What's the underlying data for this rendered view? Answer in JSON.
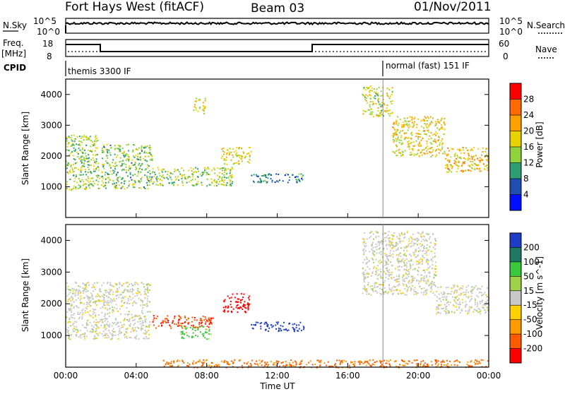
{
  "header": {
    "title": "Fort Hays West (fitACF)",
    "beam": "Beam 03",
    "date": "01/Nov/2011"
  },
  "left_labels": {
    "nsky": "N.Sky",
    "freq": "Freq.",
    "mhz": "[MHz]",
    "cpid": "CPID"
  },
  "right_labels": {
    "nsearch": "N.Search",
    "nave": "Nave"
  },
  "noise_panel": {
    "left_ticks": [
      "10^5",
      "10^0"
    ],
    "right_ticks": [
      "10^5",
      "10^0"
    ]
  },
  "freq_panel": {
    "left_ticks": [
      "18",
      "8"
    ],
    "right_ticks": [
      "60",
      "0"
    ]
  },
  "cpid_panel": {
    "mode1": "themis 3300 IF",
    "mode2": "normal (fast) 151 IF"
  },
  "power_colorbar": {
    "label": "Power [dB]",
    "ticks": [
      "28",
      "24",
      "20",
      "16",
      "12",
      "8",
      "4"
    ],
    "colors": [
      "#ff0000",
      "#ff6a00",
      "#ff9f00",
      "#e8d200",
      "#8fd23c",
      "#2f9e72",
      "#1e4fb0",
      "#0010ff"
    ]
  },
  "velocity_colorbar": {
    "label": "Velocity [m s^-1]",
    "ticks": [
      "200",
      "100",
      "50",
      "15",
      "-15",
      "-50",
      "-100",
      "-200"
    ],
    "colors": [
      "#1e3cc8",
      "#1e7a64",
      "#3cc83c",
      "#9ed24a",
      "#c8c8c8",
      "#ffd200",
      "#ff9a00",
      "#ff5a00",
      "#ff0000"
    ]
  },
  "chart_data": [
    {
      "type": "heatmap",
      "name": "power",
      "ylabel": "Slant Range [km]",
      "ylim": [
        0,
        4500
      ],
      "yticks": [
        "1000",
        "2000",
        "3000",
        "4000"
      ],
      "xlim": [
        0,
        24
      ],
      "patches": [
        {
          "t0": 0.0,
          "t1": 1.9,
          "r0": 900,
          "r1": 2700,
          "intensity": 14
        },
        {
          "t0": 2.0,
          "t1": 4.9,
          "r0": 950,
          "r1": 2400,
          "intensity": 13
        },
        {
          "t0": 4.9,
          "t1": 9.5,
          "r0": 1050,
          "r1": 1650,
          "intensity": 14
        },
        {
          "t0": 7.2,
          "t1": 7.9,
          "r0": 3400,
          "r1": 3900,
          "intensity": 16
        },
        {
          "t0": 8.8,
          "t1": 10.5,
          "r0": 1750,
          "r1": 2300,
          "intensity": 17
        },
        {
          "t0": 10.5,
          "t1": 13.5,
          "r0": 1150,
          "r1": 1450,
          "intensity": 9
        },
        {
          "t0": 16.8,
          "t1": 18.5,
          "r0": 3300,
          "r1": 4300,
          "intensity": 16
        },
        {
          "t0": 18.5,
          "t1": 21.5,
          "r0": 2000,
          "r1": 3300,
          "intensity": 18
        },
        {
          "t0": 21.5,
          "t1": 24.0,
          "r0": 1500,
          "r1": 2300,
          "intensity": 19
        }
      ]
    },
    {
      "type": "heatmap",
      "name": "velocity",
      "ylabel": "Slant Range [km]",
      "xlabel": "Time UT",
      "ylim": [
        0,
        4500
      ],
      "yticks": [
        "1000",
        "2000",
        "3000",
        "4000"
      ],
      "xlim": [
        0,
        24
      ],
      "xticks": [
        "00:00",
        "04:00",
        "08:00",
        "12:00",
        "16:00",
        "20:00",
        "00:00"
      ],
      "patches": [
        {
          "t0": 0.0,
          "t1": 4.8,
          "r0": 900,
          "r1": 2700,
          "velocity": 0
        },
        {
          "t0": 4.9,
          "t1": 8.4,
          "r0": 1250,
          "r1": 1650,
          "velocity": -140
        },
        {
          "t0": 8.9,
          "t1": 10.4,
          "r0": 1750,
          "r1": 2350,
          "velocity": -220
        },
        {
          "t0": 10.5,
          "t1": 13.5,
          "r0": 1150,
          "r1": 1450,
          "velocity": 180
        },
        {
          "t0": 6.5,
          "t1": 8.2,
          "r0": 900,
          "r1": 1300,
          "velocity": 40
        },
        {
          "t0": 16.8,
          "t1": 21.0,
          "r0": 2300,
          "r1": 4300,
          "velocity": 0
        },
        {
          "t0": 21.0,
          "t1": 24.0,
          "r0": 1700,
          "r1": 2600,
          "velocity": 0
        },
        {
          "t0": 5.5,
          "t1": 24.0,
          "r0": 0,
          "r1": 250,
          "velocity": -80
        }
      ]
    }
  ]
}
